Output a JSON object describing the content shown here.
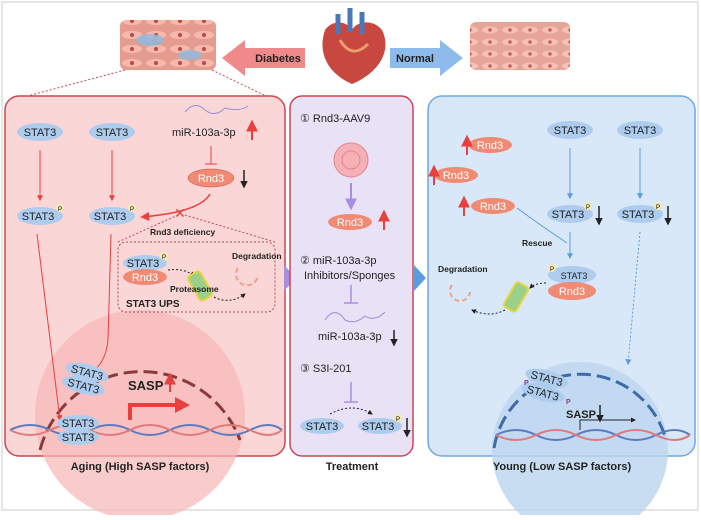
{
  "top": {
    "left_label": "Diabetes",
    "right_label": "Normal"
  },
  "colors": {
    "aging_panel": "#fbd6d6",
    "aging_border": "#c9484d",
    "treatment_panel": "#e9e1f5",
    "young_panel": "#d9e8f8",
    "young_border": "#6fa8e0",
    "stat3": "#aecdee",
    "rnd3": "#f08a72",
    "red_arrow": "#e8403c",
    "blue_arrow": "#5b9be0"
  },
  "aging": {
    "stat3": "STAT3",
    "mir": "miR-103a-3p",
    "rnd3": "Rnd3",
    "rnd3_deficiency": "Rnd3 deficiency",
    "degradation": "Degradation",
    "proteasome": "Proteasome",
    "ups": "STAT3 UPS",
    "sasp": "SASP",
    "p": "P",
    "caption": "Aging (High SASP factors)"
  },
  "treatment": {
    "step1": "① Rnd3-AAV9",
    "rnd3": "Rnd3",
    "step2a": "② miR-103a-3p",
    "step2b": "Inhibitors/Sponges",
    "mir": "miR-103a-3p",
    "step3": "③  S3I-201",
    "stat3": "STAT3",
    "p": "P",
    "caption": "Treatment"
  },
  "young": {
    "rnd3": "Rnd3",
    "stat3": "STAT3",
    "rescue": "Rescue",
    "degradation": "Degradation",
    "sasp": "SASP",
    "p": "P",
    "caption": "Young (Low SASP factors)"
  }
}
